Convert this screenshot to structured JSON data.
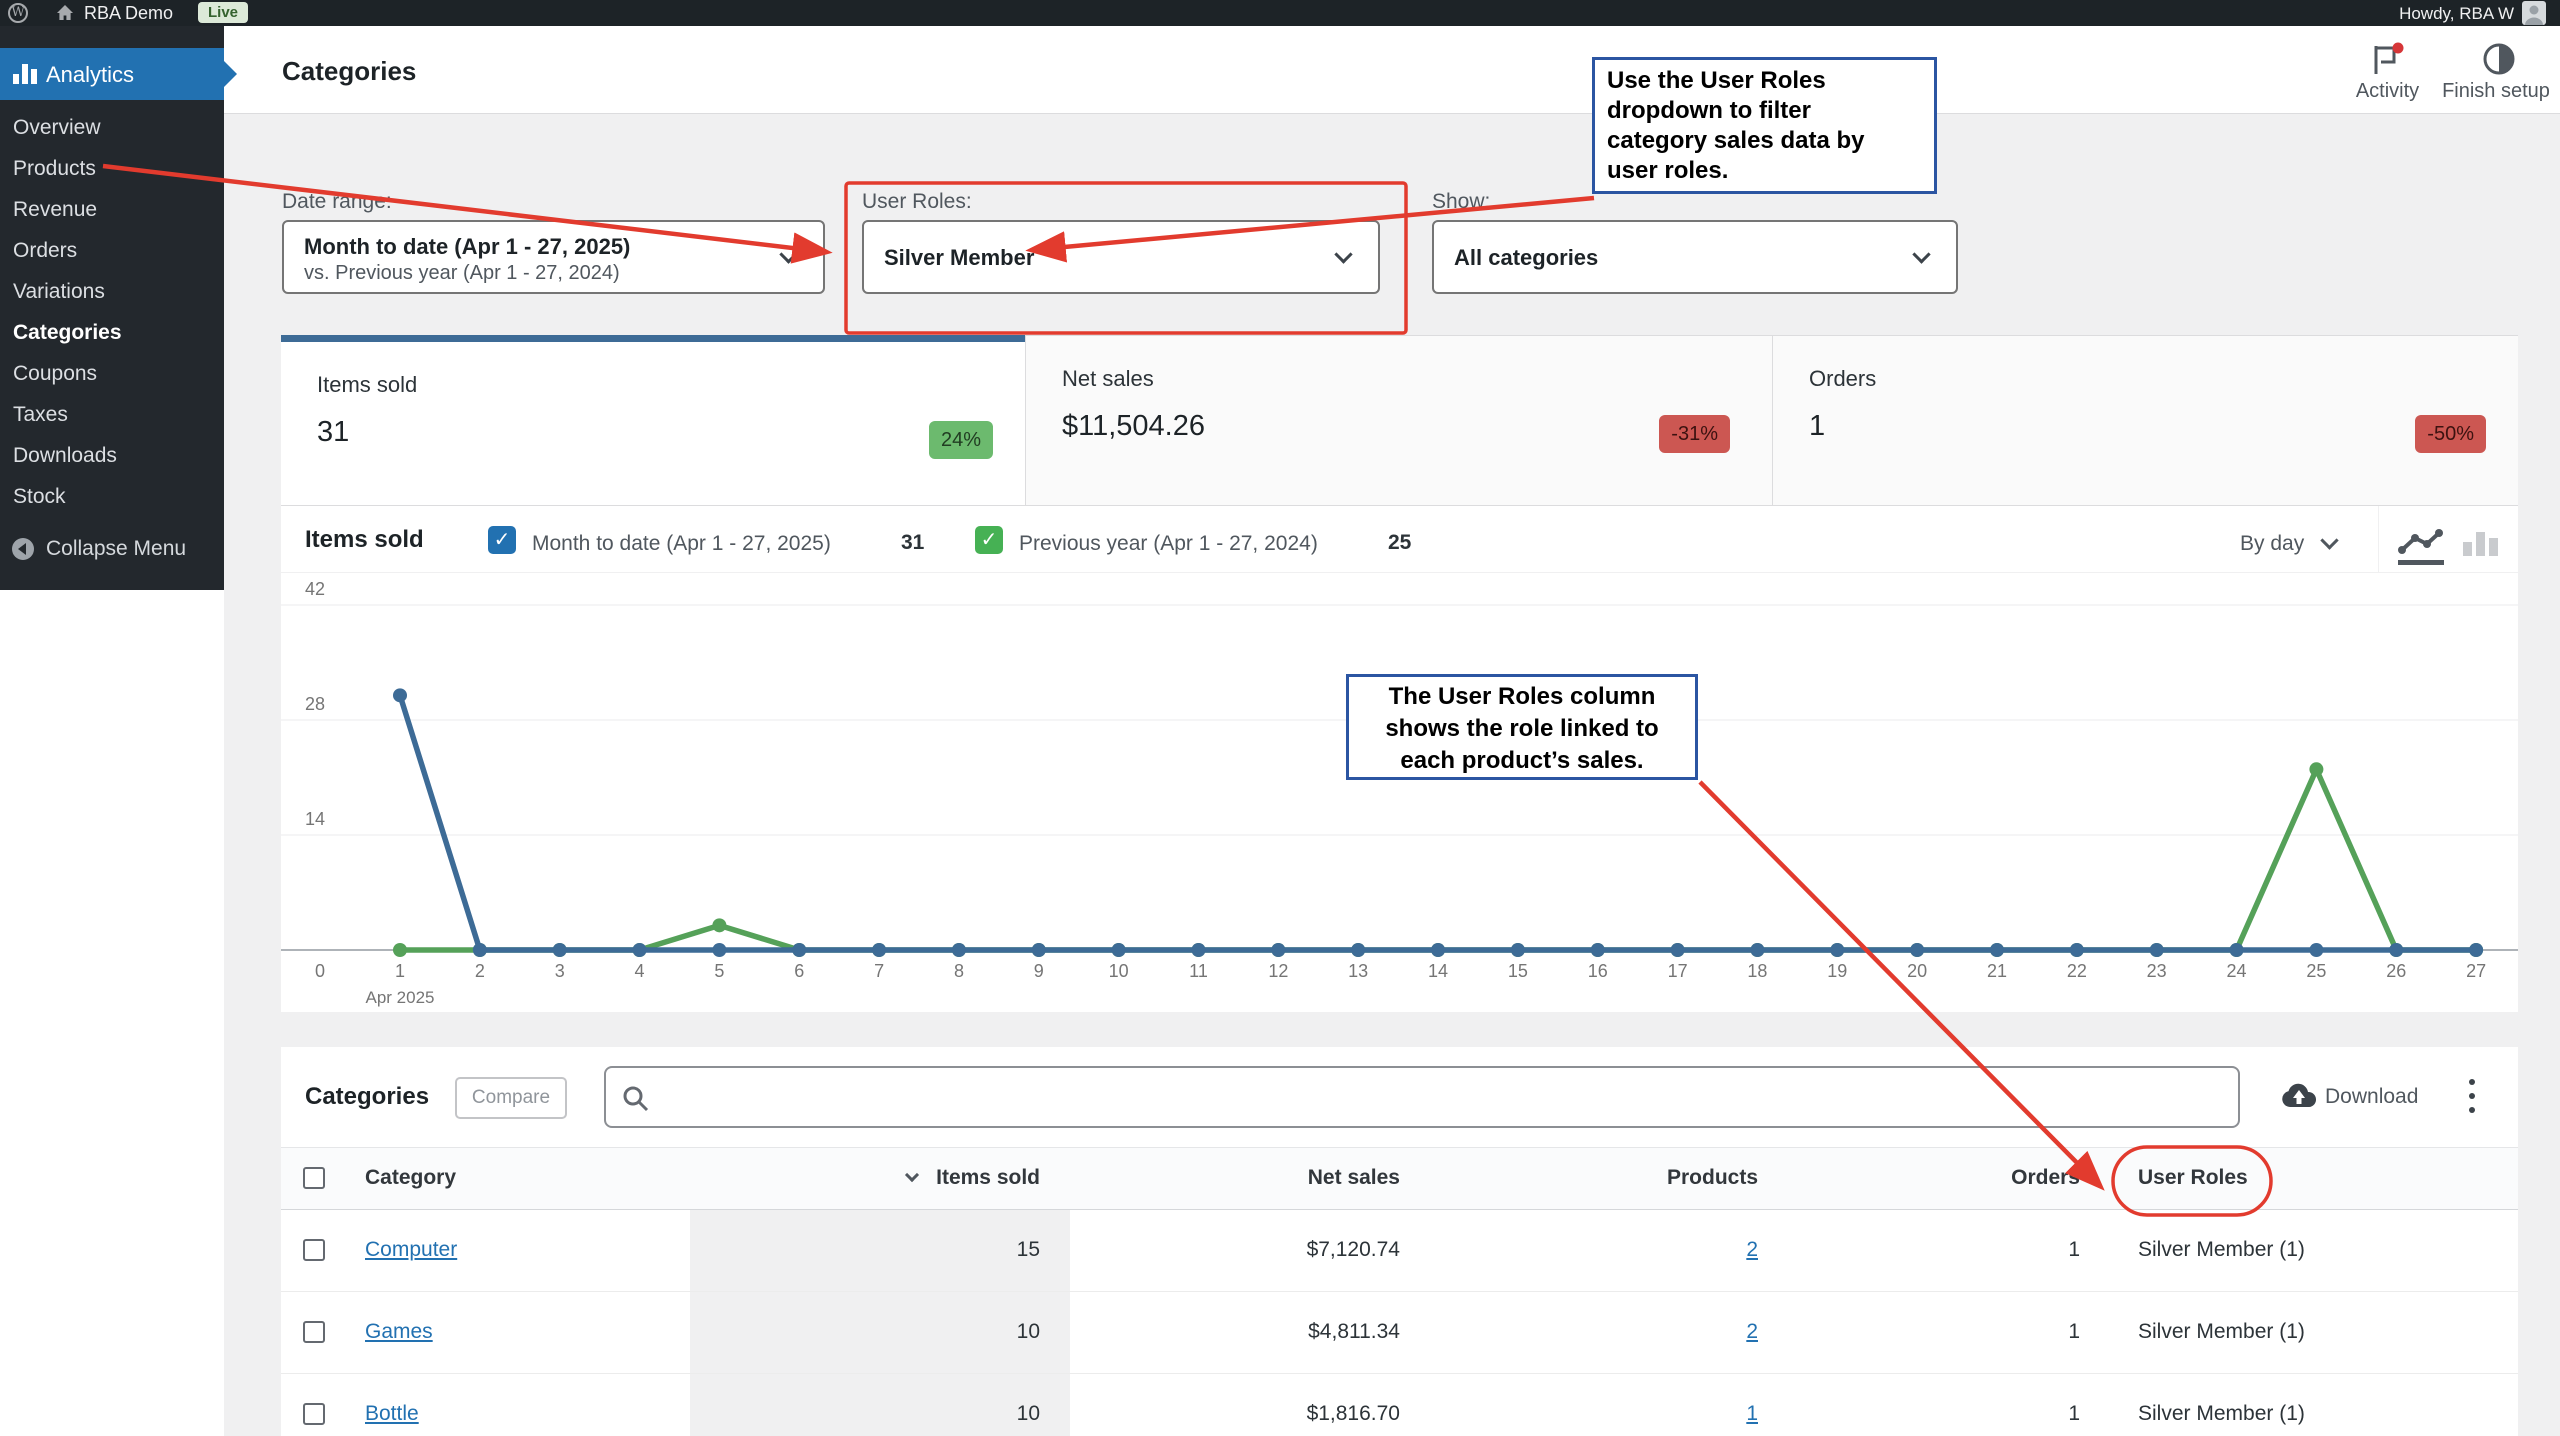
{
  "admin_bar": {
    "site_name": "RBA Demo",
    "live_badge": "Live",
    "howdy": "Howdy, RBA W"
  },
  "sidebar": {
    "app_label": "Analytics",
    "items": [
      {
        "label": "Overview",
        "active": false
      },
      {
        "label": "Products",
        "active": false
      },
      {
        "label": "Revenue",
        "active": false
      },
      {
        "label": "Orders",
        "active": false
      },
      {
        "label": "Variations",
        "active": false
      },
      {
        "label": "Categories",
        "active": true
      },
      {
        "label": "Coupons",
        "active": false
      },
      {
        "label": "Taxes",
        "active": false
      },
      {
        "label": "Downloads",
        "active": false
      },
      {
        "label": "Stock",
        "active": false
      }
    ],
    "collapse_label": "Collapse Menu"
  },
  "header": {
    "title": "Categories",
    "activity_label": "Activity",
    "finish_setup_label": "Finish setup"
  },
  "filters": {
    "date_range": {
      "label": "Date range:",
      "primary": "Month to date (Apr 1 - 27, 2025)",
      "secondary": "vs. Previous year (Apr 1 - 27, 2024)"
    },
    "user_roles": {
      "label": "User Roles:",
      "value": "Silver Member"
    },
    "show": {
      "label": "Show:",
      "value": "All categories"
    }
  },
  "kpis": [
    {
      "label": "Items sold",
      "value": "31",
      "delta": "24%",
      "direction": "up",
      "selected": true
    },
    {
      "label": "Net sales",
      "value": "$11,504.26",
      "delta": "-31%",
      "direction": "down",
      "selected": false
    },
    {
      "label": "Orders",
      "value": "1",
      "delta": "-50%",
      "direction": "down",
      "selected": false
    }
  ],
  "kpi_colors": {
    "up_bg": "#6cba6e",
    "up_text": "#213d22",
    "down_bg": "#cc5752",
    "down_text": "#3c1210",
    "selected_top_border": "#3d6b96"
  },
  "chart_header": {
    "title": "Items sold",
    "interval": "By day",
    "series": [
      {
        "label": "Month to date (Apr 1 - 27, 2025)",
        "total": "31",
        "checkbox_color": "#2271b1"
      },
      {
        "label": "Previous year (Apr 1 - 27, 2024)",
        "total": "25",
        "checkbox_color": "#46b154"
      }
    ]
  },
  "chart_data": {
    "type": "line",
    "x": [
      1,
      2,
      3,
      4,
      5,
      6,
      7,
      8,
      9,
      10,
      11,
      12,
      13,
      14,
      15,
      16,
      17,
      18,
      19,
      20,
      21,
      22,
      23,
      24,
      25,
      26,
      27
    ],
    "x_origin_label": "0",
    "x_annotation": "Apr 2025",
    "series": [
      {
        "name": "Previous year (Apr 1 - 27, 2024)",
        "color": "#55a159",
        "values": [
          0,
          0,
          0,
          0,
          3,
          0,
          0,
          0,
          0,
          0,
          0,
          0,
          0,
          0,
          0,
          0,
          0,
          0,
          0,
          0,
          0,
          0,
          0,
          0,
          22,
          0,
          0
        ]
      },
      {
        "name": "Month to date (Apr 1 - 27, 2025)",
        "color": "#3d6b96",
        "values": [
          31,
          0,
          0,
          0,
          0,
          0,
          0,
          0,
          0,
          0,
          0,
          0,
          0,
          0,
          0,
          0,
          0,
          0,
          0,
          0,
          0,
          0,
          0,
          0,
          0,
          0,
          0
        ]
      }
    ],
    "ylim": [
      0,
      42
    ],
    "yticks": [
      0,
      14,
      28,
      42
    ],
    "grid": true,
    "legend_position": "top"
  },
  "table": {
    "title": "Categories",
    "compare_button": "Compare",
    "search_placeholder": "",
    "download_label": "Download",
    "columns": [
      "Category",
      "Items sold",
      "Net sales",
      "Products",
      "Orders",
      "User Roles"
    ],
    "sorted_column": "Items sold",
    "rows": [
      {
        "category": "Computer",
        "items_sold": "15",
        "net_sales": "$7,120.74",
        "products": "2",
        "orders": "1",
        "user_roles": "Silver Member (1)"
      },
      {
        "category": "Games",
        "items_sold": "10",
        "net_sales": "$4,811.34",
        "products": "2",
        "orders": "1",
        "user_roles": "Silver Member (1)"
      },
      {
        "category": "Bottle",
        "items_sold": "10",
        "net_sales": "$1,816.70",
        "products": "1",
        "orders": "1",
        "user_roles": "Silver Member (1)"
      }
    ]
  },
  "annotations": {
    "callout1": "Use the User Roles\ndropdown to filter\ncategory sales data by\nuser roles.",
    "callout2": "The User Roles column\nshows the role linked to\neach product’s sales.",
    "accent_color": "#e23b2e",
    "callout_border_color": "#2b55a2"
  }
}
